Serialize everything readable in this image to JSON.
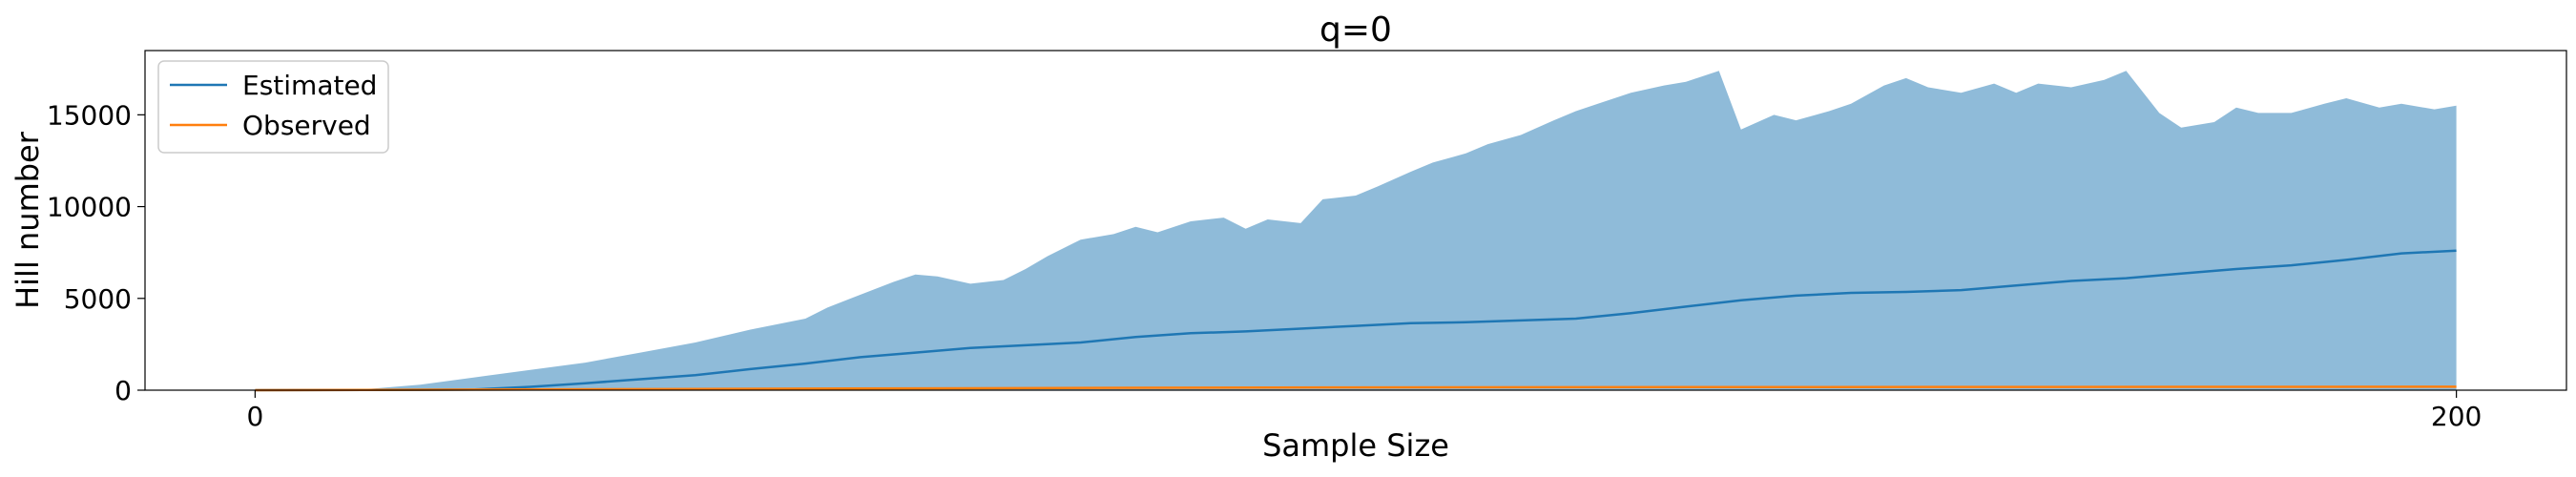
{
  "chart_data": {
    "type": "area",
    "title": "q=0",
    "xlabel": "Sample Size",
    "ylabel": "Hill number",
    "xlim": [
      -10,
      210
    ],
    "ylim": [
      0,
      18500
    ],
    "xticks": [
      0,
      200
    ],
    "xtick_labels": [
      "0",
      "200"
    ],
    "yticks": [
      0,
      5000,
      10000,
      15000
    ],
    "ytick_labels": [
      "0",
      "5000",
      "10000",
      "15000"
    ],
    "grid": false,
    "legend_position": "top-left",
    "legend": [
      "Estimated",
      "Observed"
    ],
    "series": [
      {
        "name": "Estimated",
        "color": "#1f77b4",
        "x": [
          0,
          10,
          20,
          25,
          30,
          35,
          40,
          45,
          50,
          55,
          60,
          65,
          70,
          75,
          80,
          85,
          90,
          95,
          100,
          105,
          110,
          115,
          120,
          125,
          130,
          135,
          140,
          145,
          150,
          155,
          160,
          165,
          170,
          175,
          180,
          185,
          190,
          195,
          200
        ],
        "values": [
          0,
          10,
          40,
          180,
          380,
          600,
          820,
          1150,
          1450,
          1800,
          2050,
          2300,
          2450,
          2600,
          2900,
          3100,
          3200,
          3350,
          3500,
          3650,
          3700,
          3800,
          3900,
          4200,
          4550,
          4900,
          5150,
          5300,
          5350,
          5450,
          5700,
          5950,
          6100,
          6350,
          6600,
          6800,
          7100,
          7450,
          7600
        ]
      },
      {
        "name": "Observed",
        "color": "#ff7f0e",
        "x": [
          0,
          10,
          20,
          40,
          60,
          80,
          100,
          120,
          140,
          160,
          180,
          200
        ],
        "values": [
          0,
          10,
          30,
          70,
          100,
          130,
          150,
          160,
          170,
          175,
          180,
          185
        ]
      }
    ],
    "bands": [
      {
        "series": "Estimated",
        "color": "#1f77b4",
        "alpha": 0.5,
        "x": [
          0,
          10,
          15,
          20,
          25,
          30,
          35,
          40,
          45,
          50,
          52,
          55,
          58,
          60,
          62,
          65,
          68,
          70,
          72,
          75,
          78,
          80,
          82,
          85,
          88,
          90,
          92,
          95,
          97,
          100,
          102,
          105,
          107,
          110,
          112,
          115,
          118,
          120,
          122,
          125,
          128,
          130,
          133,
          135,
          138,
          140,
          143,
          145,
          148,
          150,
          152,
          155,
          158,
          160,
          162,
          165,
          168,
          170,
          173,
          175,
          178,
          180,
          182,
          185,
          188,
          190,
          193,
          195,
          198,
          200
        ],
        "lower": [
          0,
          0,
          0,
          0,
          0,
          0,
          0,
          0,
          0,
          0,
          0,
          0,
          0,
          0,
          0,
          0,
          0,
          0,
          0,
          0,
          0,
          0,
          0,
          0,
          0,
          0,
          0,
          0,
          0,
          0,
          0,
          0,
          0,
          0,
          0,
          0,
          0,
          0,
          0,
          0,
          0,
          0,
          0,
          0,
          0,
          0,
          0,
          0,
          0,
          0,
          0,
          0,
          0,
          0,
          0,
          0,
          0,
          0,
          0,
          0,
          0,
          0,
          0,
          0,
          0,
          0,
          0,
          0,
          0,
          0
        ],
        "upper": [
          0,
          50,
          300,
          700,
          1100,
          1500,
          2050,
          2600,
          3300,
          3900,
          4500,
          5200,
          5900,
          6300,
          6200,
          5800,
          6000,
          6600,
          7300,
          8200,
          8500,
          8900,
          8600,
          9200,
          9400,
          8800,
          9300,
          9100,
          10400,
          10600,
          11100,
          11900,
          12400,
          12900,
          13400,
          13900,
          14700,
          15200,
          15600,
          16200,
          16600,
          16800,
          17400,
          14200,
          15000,
          14700,
          15200,
          15600,
          16600,
          17000,
          16500,
          16200,
          16700,
          16200,
          16700,
          16500,
          16900,
          17400,
          15100,
          14300,
          14600,
          15400,
          15100,
          15100,
          15600,
          15900,
          15400,
          15600,
          15300,
          15500
        ]
      }
    ]
  }
}
